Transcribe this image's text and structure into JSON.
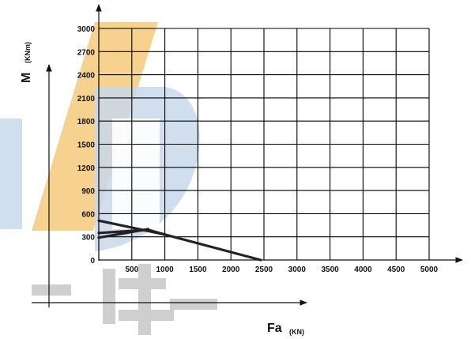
{
  "chart_data": {
    "type": "line",
    "xlabel": "Fa",
    "xunit": "(KN)",
    "ylabel": "M",
    "yunit": "(KNm)",
    "xlim": [
      0,
      5000
    ],
    "ylim": [
      0,
      3000
    ],
    "x_ticks": [
      "500",
      "1000",
      "1500",
      "2000",
      "2500",
      "3000",
      "3500",
      "4000",
      "4500",
      "5000"
    ],
    "y_ticks": [
      "0",
      "300",
      "600",
      "900",
      "1200",
      "1500",
      "1800",
      "2100",
      "2400",
      "2700",
      "3000"
    ],
    "grid": true,
    "series": [
      {
        "points": [
          [
            0,
            510
          ],
          [
            1000,
            330
          ],
          [
            2450,
            0
          ]
        ]
      },
      {
        "points": [
          [
            0,
            290
          ],
          [
            750,
            400
          ]
        ]
      },
      {
        "points": [
          [
            0,
            350
          ],
          [
            750,
            390
          ],
          [
            1000,
            330
          ]
        ]
      }
    ],
    "colors": {
      "line": "#222222",
      "grid": "#000000",
      "watermark_gold": "#f6c97a",
      "watermark_blue": "#c8d7ea",
      "watermark_gray": "#cfcfcf"
    }
  }
}
